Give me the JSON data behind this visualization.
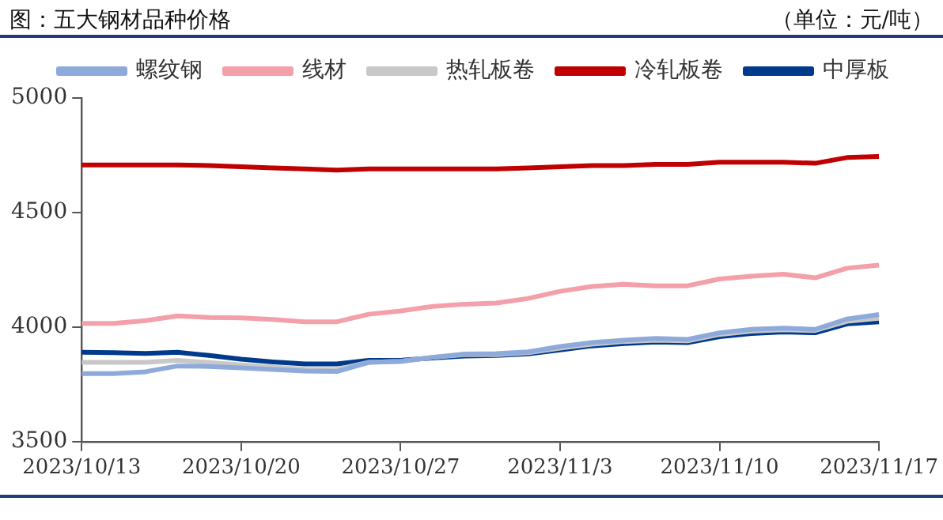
{
  "chart_data": {
    "type": "line",
    "title": "图：五大钢材品种价格",
    "annotations": [
      "（单位：元/吨）"
    ],
    "categories": [
      "2023/10/13",
      null,
      null,
      null,
      null,
      "2023/10/20",
      null,
      null,
      null,
      null,
      "2023/10/27",
      null,
      null,
      null,
      null,
      "2023/11/3",
      null,
      null,
      null,
      null,
      "2023/11/10",
      null,
      null,
      null,
      null,
      "2023/11/17"
    ],
    "series": [
      {
        "name": "螺纹钢",
        "color": "#8eaadb",
        "values": [
          3797,
          3797,
          3805,
          3830,
          3828,
          3822,
          3815,
          3808,
          3806,
          3846,
          3850,
          3868,
          3882,
          3884,
          3892,
          3915,
          3932,
          3943,
          3950,
          3946,
          3975,
          3990,
          3995,
          3990,
          4035,
          4055
        ]
      },
      {
        "name": "线材",
        "color": "#f4a0aa",
        "values": [
          4016,
          4016,
          4028,
          4049,
          4042,
          4040,
          4033,
          4023,
          4023,
          4056,
          4070,
          4090,
          4100,
          4105,
          4125,
          4156,
          4177,
          4187,
          4180,
          4180,
          4210,
          4222,
          4231,
          4215,
          4257,
          4270
        ]
      },
      {
        "name": "热轧板卷",
        "color": "#c8c8c8",
        "values": [
          3846,
          3846,
          3846,
          3855,
          3845,
          3835,
          3825,
          3816,
          3815,
          3846,
          3850,
          3868,
          3880,
          3880,
          3888,
          3908,
          3925,
          3937,
          3943,
          3940,
          3968,
          3982,
          3988,
          3985,
          4025,
          4038
        ]
      },
      {
        "name": "冷轧板卷",
        "color": "#c00000",
        "values": [
          4708,
          4708,
          4708,
          4708,
          4705,
          4700,
          4695,
          4690,
          4685,
          4690,
          4690,
          4690,
          4690,
          4690,
          4695,
          4700,
          4705,
          4705,
          4710,
          4710,
          4720,
          4720,
          4720,
          4715,
          4740,
          4745
        ]
      },
      {
        "name": "中厚板",
        "color": "#003a8c",
        "values": [
          3890,
          3888,
          3885,
          3890,
          3876,
          3860,
          3848,
          3839,
          3839,
          3855,
          3855,
          3865,
          3874,
          3876,
          3883,
          3900,
          3918,
          3928,
          3935,
          3932,
          3958,
          3972,
          3979,
          3975,
          4014,
          4023
        ]
      }
    ],
    "ylim": [
      3500,
      5000
    ],
    "yticks": [
      3500,
      4000,
      4500,
      5000
    ],
    "grid": false,
    "legend": "top",
    "marker": "none",
    "line_style": "solid"
  }
}
